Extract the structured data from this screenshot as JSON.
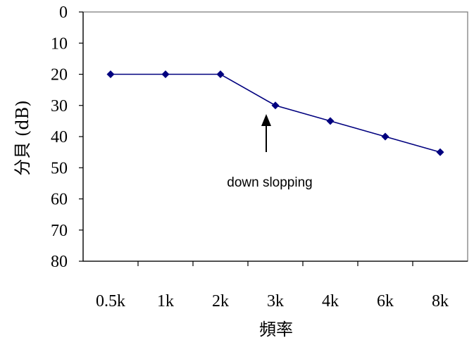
{
  "chart_data": {
    "type": "line",
    "categories": [
      "0.5k",
      "1k",
      "2k",
      "3k",
      "4k",
      "6k",
      "8k"
    ],
    "series": [
      {
        "values": [
          20,
          20,
          20,
          30,
          35,
          40,
          45
        ]
      }
    ],
    "xlabel": "頻率",
    "ylabel": "分貝 (dB)",
    "ylim": [
      0,
      80
    ],
    "y_reversed": true,
    "y_ticks": [
      0,
      10,
      20,
      30,
      40,
      50,
      60,
      70,
      80
    ],
    "grid": false,
    "legend": "none",
    "annotation": {
      "text": "down slopping",
      "points_to_category": "3k",
      "points_to_value": 30
    },
    "colors": {
      "series": "#00007f",
      "axis": "#808080",
      "arrow": "#000000"
    }
  }
}
